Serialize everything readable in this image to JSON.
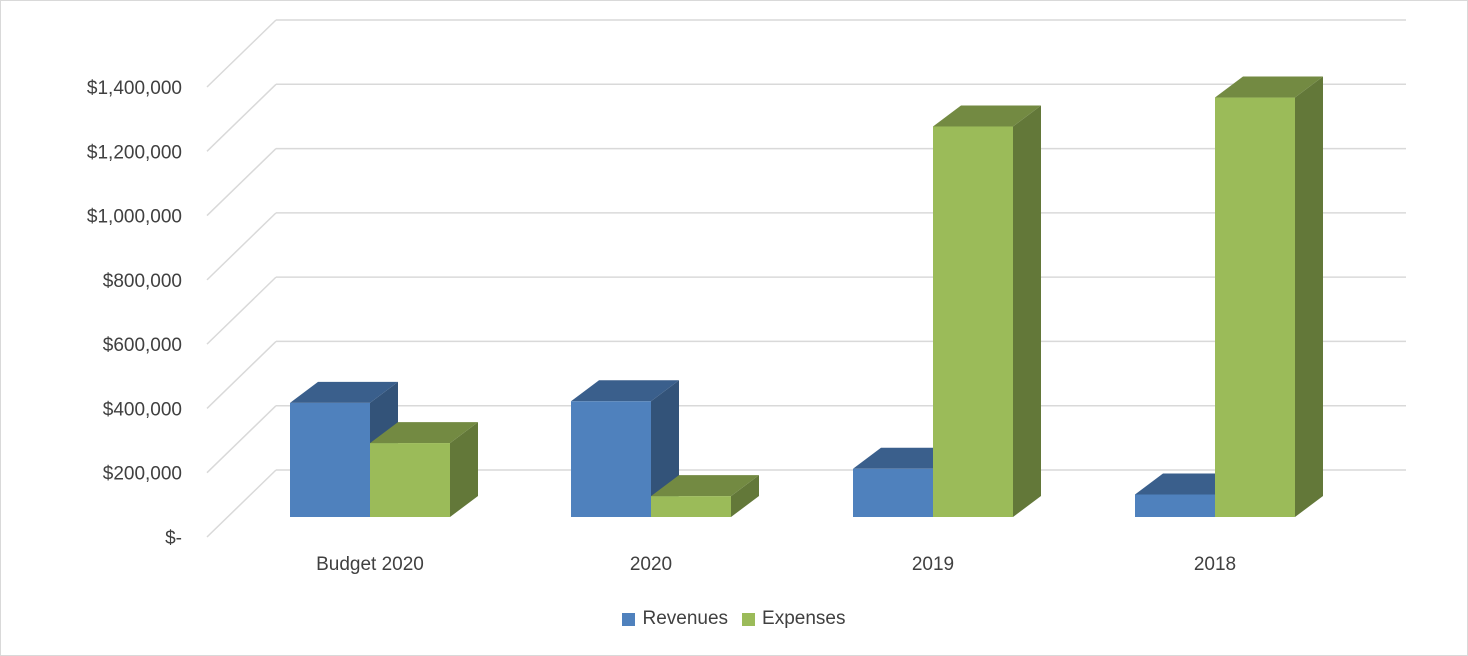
{
  "chart_data": {
    "type": "bar",
    "title": "",
    "xlabel": "",
    "ylabel": "",
    "categories": [
      "Budget 2020",
      "2020",
      "2019",
      "2018"
    ],
    "series": [
      {
        "name": "Revenues",
        "values": [
          355000,
          360000,
          150000,
          70000
        ],
        "color": "#4f81bd"
      },
      {
        "name": "Expenses",
        "values": [
          230000,
          65000,
          1215000,
          1305000
        ],
        "color": "#9bbb59"
      }
    ],
    "ylim": [
      0,
      1400000
    ],
    "yticks": [
      {
        "value": 0,
        "label": "$-"
      },
      {
        "value": 200000,
        "label": "$200,000"
      },
      {
        "value": 400000,
        "label": "$400,000"
      },
      {
        "value": 600000,
        "label": "$600,000"
      },
      {
        "value": 800000,
        "label": "$800,000"
      },
      {
        "value": 1000000,
        "label": "$1,000,000"
      },
      {
        "value": 1200000,
        "label": "$1,200,000"
      },
      {
        "value": 1400000,
        "label": "$1,400,000"
      }
    ],
    "grid": true,
    "three_d": true,
    "legend_position": "bottom"
  }
}
